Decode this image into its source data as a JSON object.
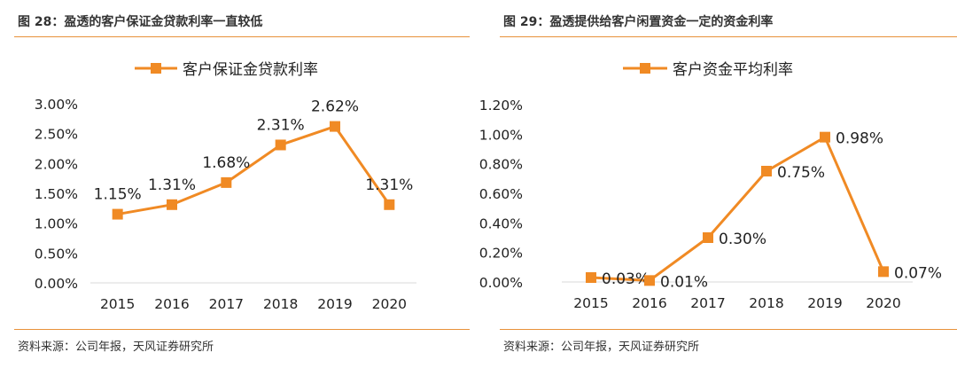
{
  "figures": [
    {
      "title": "图 28：盈透的客户保证金贷款利率一直较低",
      "source": "资料来源：公司年报，天风证券研究所"
    },
    {
      "title": "图 29：盈透提供给客户闲置资金一定的资金利率",
      "source": "资料来源：公司年报，天风证券研究所"
    }
  ],
  "colors": {
    "accent": "#e8923a",
    "line": "#f08a24",
    "text": "#222222"
  },
  "chart_data": [
    {
      "type": "line",
      "title": "",
      "xlabel": "",
      "ylabel": "",
      "categories": [
        "2015",
        "2016",
        "2017",
        "2018",
        "2019",
        "2020"
      ],
      "series": [
        {
          "name": "客户保证金贷款利率",
          "values": [
            1.15,
            1.31,
            1.68,
            2.31,
            2.62,
            1.31
          ],
          "labels": [
            "1.15%",
            "1.31%",
            "1.68%",
            "2.31%",
            "2.62%",
            "1.31%"
          ]
        }
      ],
      "ylim": [
        0,
        3.0
      ],
      "yticks": [
        "0.00%",
        "0.50%",
        "1.00%",
        "1.50%",
        "2.00%",
        "2.50%",
        "3.00%"
      ],
      "legend": "top",
      "grid": false
    },
    {
      "type": "line",
      "title": "",
      "xlabel": "",
      "ylabel": "",
      "categories": [
        "2015",
        "2016",
        "2017",
        "2018",
        "2019",
        "2020"
      ],
      "series": [
        {
          "name": "客户资金平均利率",
          "values": [
            0.03,
            0.01,
            0.3,
            0.75,
            0.98,
            0.07
          ],
          "labels": [
            "0.03%",
            "0.01%",
            "0.30%",
            "0.75%",
            "0.98%",
            "0.07%"
          ]
        }
      ],
      "ylim": [
        0,
        1.2
      ],
      "yticks": [
        "0.00%",
        "0.20%",
        "0.40%",
        "0.60%",
        "0.80%",
        "1.00%",
        "1.20%"
      ],
      "legend": "top",
      "grid": false
    }
  ]
}
